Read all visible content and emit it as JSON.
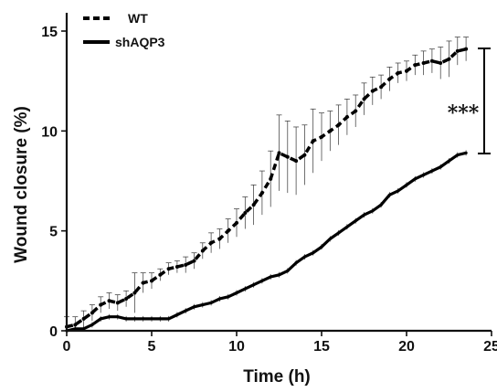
{
  "chart_data": {
    "type": "line",
    "title": "",
    "xlabel": "Time (h)",
    "ylabel": "Wound closure (%)",
    "xlim": [
      0,
      25
    ],
    "ylim": [
      0,
      15
    ],
    "x_ticks": [
      "0",
      "5",
      "10",
      "15",
      "20",
      "25"
    ],
    "y_ticks": [
      "0",
      "5",
      "10",
      "15"
    ],
    "legend_position": "top-left",
    "grid": false,
    "significance_label": "***",
    "series": [
      {
        "name": "WT",
        "style": "dashed",
        "x": [
          0,
          0.5,
          1,
          1.5,
          2,
          2.5,
          3,
          3.5,
          4,
          4.5,
          5,
          5.5,
          6,
          6.5,
          7,
          7.5,
          8,
          8.5,
          9,
          9.5,
          10,
          10.5,
          11,
          11.5,
          12,
          12.5,
          13,
          13.5,
          14,
          14.5,
          15,
          15.5,
          16,
          16.5,
          17,
          17.5,
          18,
          18.5,
          19,
          19.5,
          20,
          20.5,
          21,
          21.5,
          22,
          22.5,
          23,
          23.5
        ],
        "values": [
          0.2,
          0.3,
          0.6,
          0.9,
          1.3,
          1.5,
          1.4,
          1.6,
          1.9,
          2.4,
          2.5,
          2.8,
          3.1,
          3.2,
          3.3,
          3.5,
          4.0,
          4.4,
          4.6,
          5.0,
          5.4,
          5.9,
          6.3,
          6.9,
          7.6,
          8.9,
          8.7,
          8.5,
          8.8,
          9.5,
          9.7,
          10.0,
          10.3,
          10.7,
          11.0,
          11.6,
          12.0,
          12.2,
          12.6,
          12.9,
          13.0,
          13.3,
          13.4,
          13.5,
          13.4,
          13.6,
          14.0,
          14.1
        ],
        "errors": [
          0.5,
          0.4,
          0.4,
          0.4,
          0.4,
          0.4,
          0.4,
          0.4,
          1.0,
          0.5,
          0.4,
          0.3,
          0.3,
          0.3,
          0.4,
          0.4,
          0.4,
          0.5,
          0.5,
          0.6,
          0.7,
          0.8,
          1.0,
          1.1,
          1.4,
          1.9,
          1.8,
          1.7,
          1.5,
          1.6,
          1.2,
          1.0,
          1.0,
          0.9,
          0.8,
          0.8,
          0.7,
          0.6,
          0.6,
          0.5,
          0.5,
          0.5,
          0.6,
          0.6,
          0.8,
          0.9,
          0.7,
          0.6
        ]
      },
      {
        "name": "shAQP3",
        "style": "solid",
        "x": [
          0,
          0.5,
          1,
          1.5,
          2,
          2.5,
          3,
          3.5,
          4,
          4.5,
          5,
          5.5,
          6,
          6.5,
          7,
          7.5,
          8,
          8.5,
          9,
          9.5,
          10,
          10.5,
          11,
          11.5,
          12,
          12.5,
          13,
          13.5,
          14,
          14.5,
          15,
          15.5,
          16,
          16.5,
          17,
          17.5,
          18,
          18.5,
          19,
          19.5,
          20,
          20.5,
          21,
          21.5,
          22,
          22.5,
          23,
          23.5
        ],
        "values": [
          0.0,
          0.1,
          0.1,
          0.3,
          0.6,
          0.7,
          0.7,
          0.6,
          0.6,
          0.6,
          0.6,
          0.6,
          0.6,
          0.8,
          1.0,
          1.2,
          1.3,
          1.4,
          1.6,
          1.7,
          1.9,
          2.1,
          2.3,
          2.5,
          2.7,
          2.8,
          3.0,
          3.4,
          3.7,
          3.9,
          4.2,
          4.6,
          4.9,
          5.2,
          5.5,
          5.8,
          6.0,
          6.3,
          6.8,
          7.0,
          7.3,
          7.6,
          7.8,
          8.0,
          8.2,
          8.5,
          8.8,
          8.9
        ]
      }
    ]
  }
}
